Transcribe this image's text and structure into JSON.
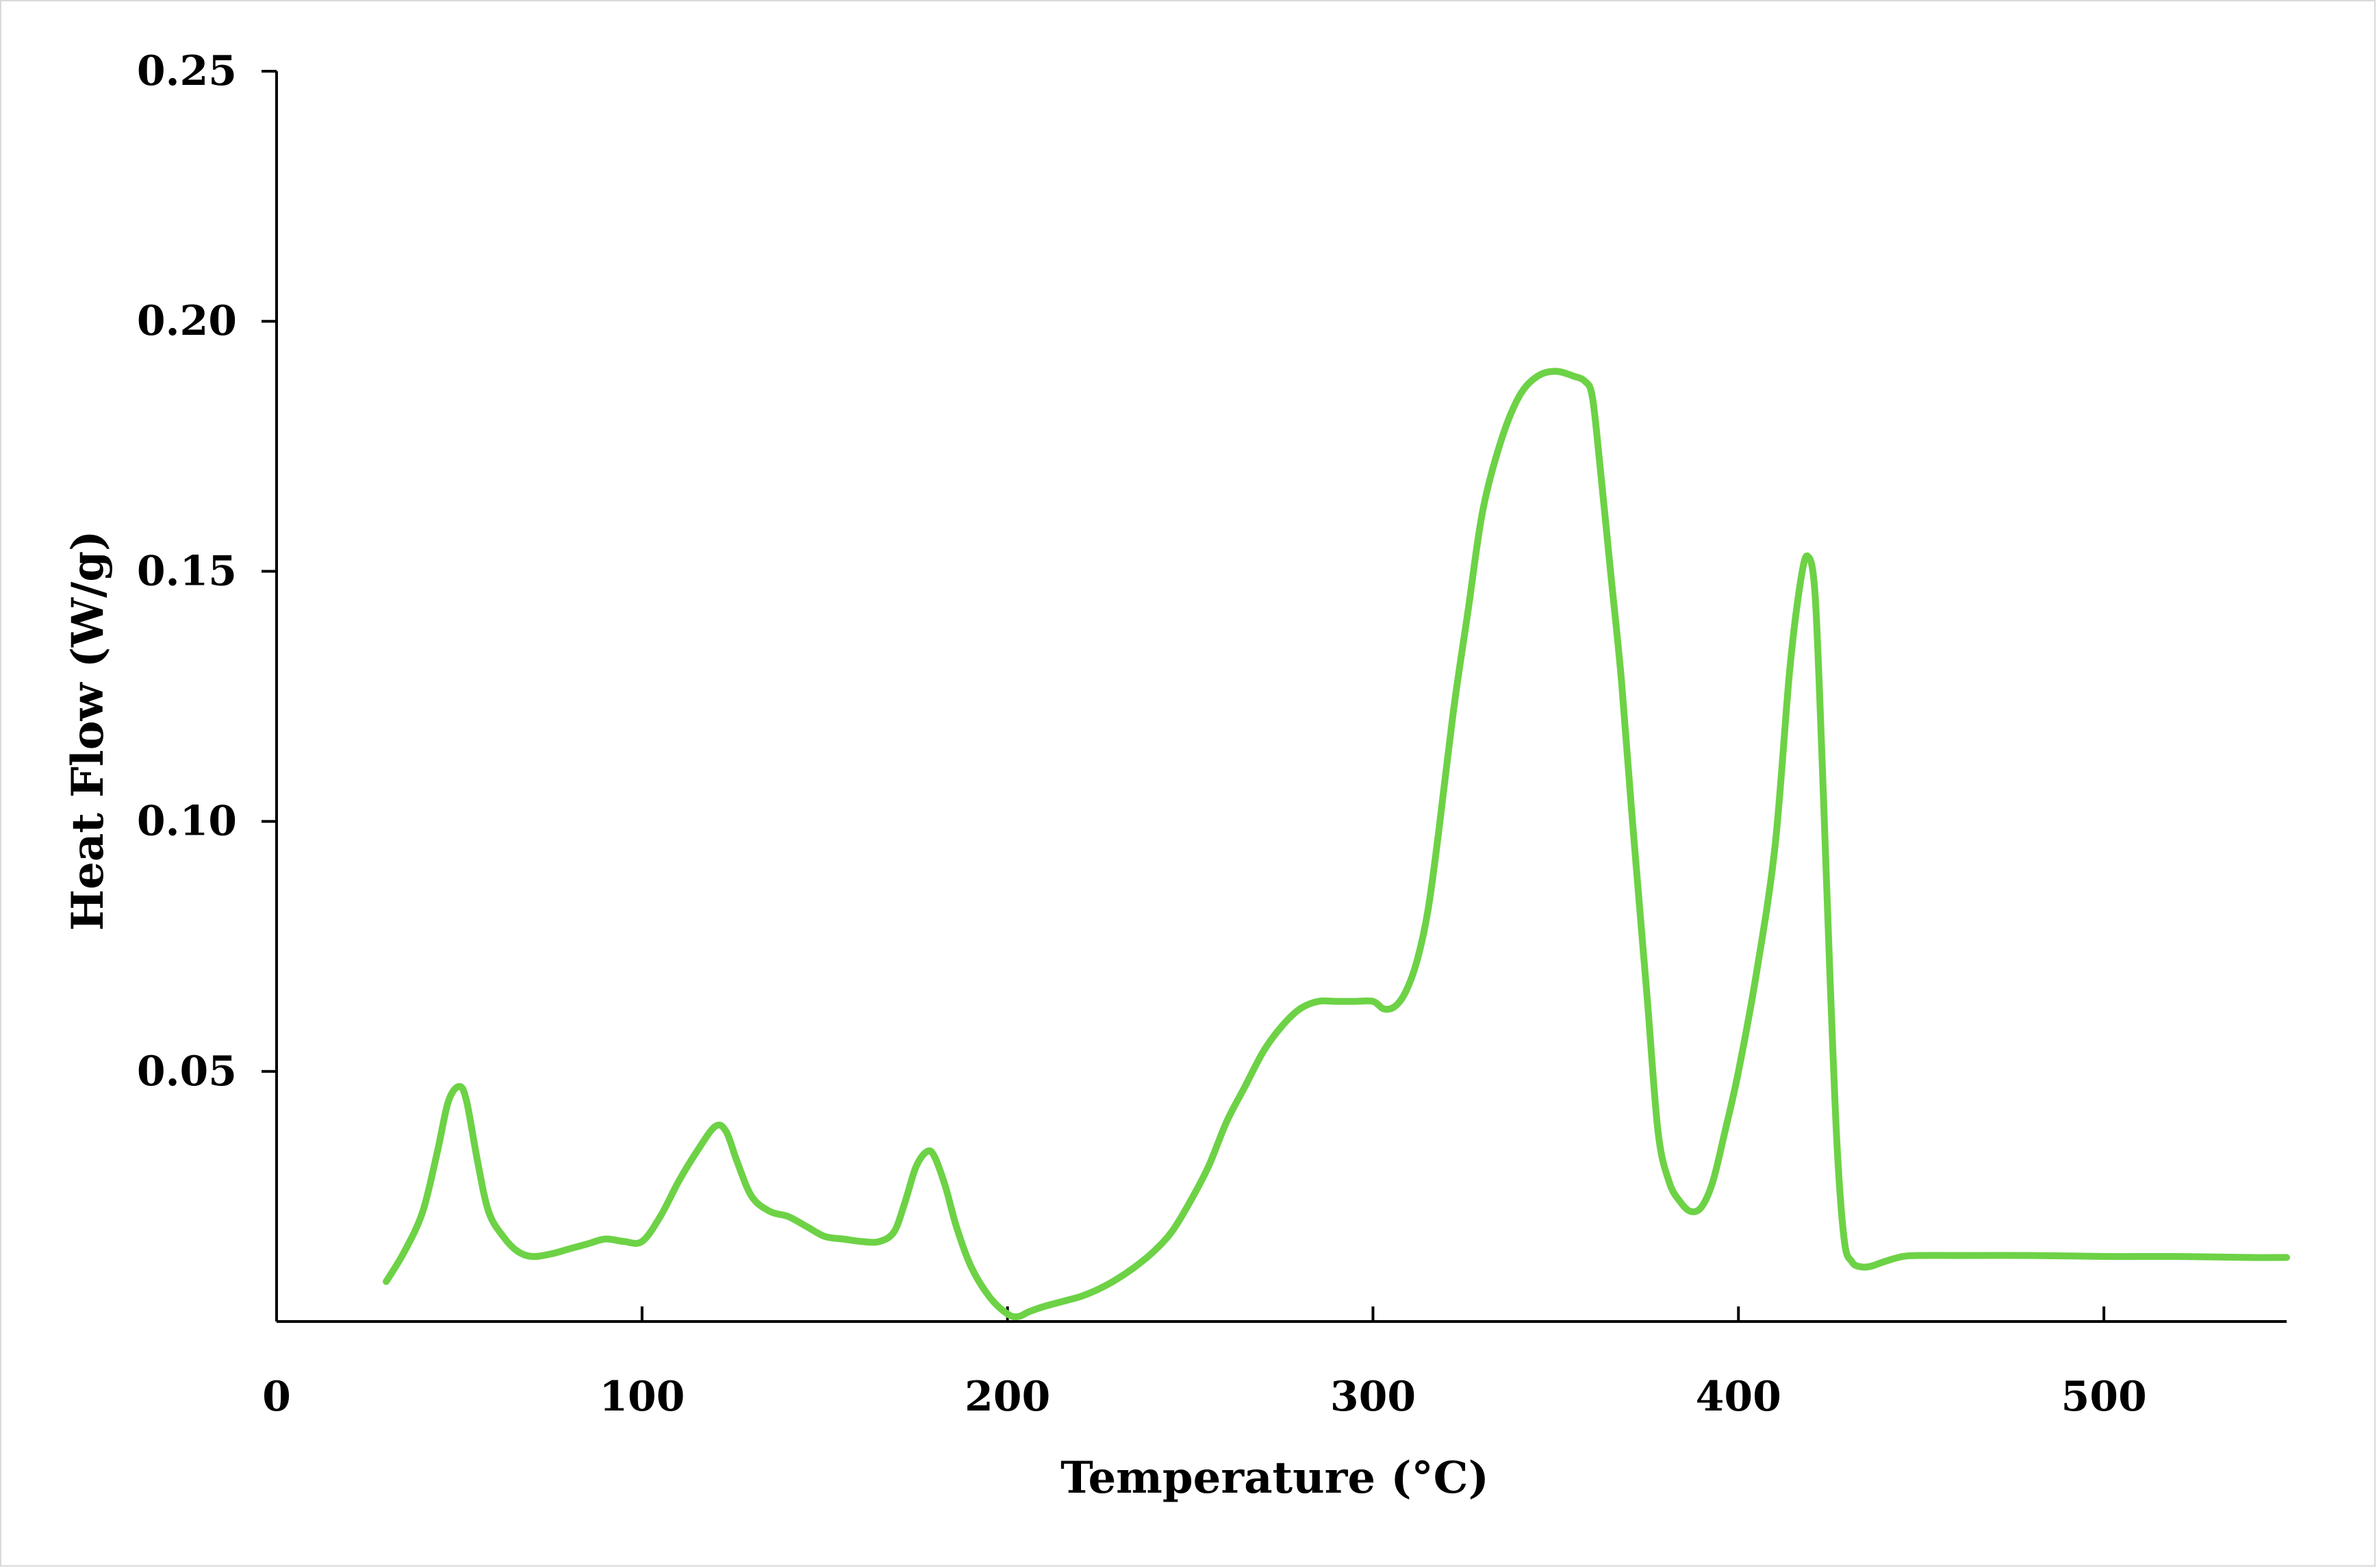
{
  "chart_data": {
    "type": "line",
    "title": "",
    "xlabel": "Temperature (°C)",
    "ylabel": "Heat Flow (W/g)",
    "xlim": [
      0,
      550
    ],
    "ylim": [
      0,
      0.25
    ],
    "x_ticks": [
      0,
      100,
      200,
      300,
      400,
      500
    ],
    "x_tick_labels": [
      "0",
      "100",
      "200",
      "300",
      "400",
      "500"
    ],
    "y_ticks": [
      0.05,
      0.1,
      0.15,
      0.2,
      0.25
    ],
    "y_tick_labels": [
      "0.05",
      "0.10",
      "0.15",
      "0.20",
      "0.25"
    ],
    "grid": false,
    "legend": "none",
    "colors": {
      "series": "#6dd246",
      "axis": "#000000",
      "frame": "#d9d9d9"
    },
    "series": [
      {
        "x": [
          30,
          35,
          40,
          44,
          47,
          50,
          52,
          55,
          58,
          62,
          66,
          70,
          75,
          80,
          85,
          90,
          95,
          100,
          105,
          110,
          115,
          120,
          123,
          126,
          130,
          135,
          140,
          145,
          150,
          155,
          160,
          165,
          169,
          172,
          175,
          178,
          180,
          183,
          186,
          190,
          195,
          200,
          203,
          206,
          210,
          215,
          220,
          225,
          230,
          235,
          240,
          245,
          250,
          255,
          260,
          265,
          270,
          275,
          280,
          285,
          290,
          295,
          300,
          303,
          306,
          309,
          312,
          315,
          318,
          322,
          326,
          330,
          335,
          340,
          345,
          350,
          355,
          358,
          360,
          362,
          365,
          368,
          371,
          375,
          378,
          381,
          384,
          387,
          390,
          393,
          396,
          400,
          405,
          410,
          414,
          417,
          419,
          421,
          423,
          425,
          427,
          429,
          431,
          433,
          436,
          440,
          445,
          450,
          460,
          480,
          500,
          520,
          540,
          550
        ],
        "y": [
          0.008,
          0.014,
          0.022,
          0.034,
          0.044,
          0.047,
          0.044,
          0.032,
          0.022,
          0.017,
          0.014,
          0.013,
          0.0135,
          0.0145,
          0.0155,
          0.0165,
          0.016,
          0.016,
          0.021,
          0.028,
          0.034,
          0.039,
          0.038,
          0.032,
          0.025,
          0.022,
          0.021,
          0.019,
          0.017,
          0.0165,
          0.016,
          0.016,
          0.018,
          0.024,
          0.031,
          0.034,
          0.033,
          0.027,
          0.019,
          0.011,
          0.005,
          0.0015,
          0.001,
          0.002,
          0.003,
          0.004,
          0.005,
          0.0065,
          0.0085,
          0.011,
          0.014,
          0.018,
          0.024,
          0.031,
          0.04,
          0.047,
          0.054,
          0.059,
          0.0625,
          0.064,
          0.064,
          0.064,
          0.064,
          0.0625,
          0.063,
          0.066,
          0.072,
          0.082,
          0.098,
          0.122,
          0.142,
          0.162,
          0.176,
          0.185,
          0.189,
          0.19,
          0.189,
          0.188,
          0.185,
          0.172,
          0.15,
          0.128,
          0.1,
          0.065,
          0.038,
          0.028,
          0.024,
          0.022,
          0.023,
          0.028,
          0.037,
          0.05,
          0.07,
          0.095,
          0.13,
          0.148,
          0.153,
          0.145,
          0.11,
          0.07,
          0.035,
          0.016,
          0.012,
          0.011,
          0.011,
          0.012,
          0.013,
          0.0132,
          0.0132,
          0.0132,
          0.013,
          0.013,
          0.0128,
          0.0128
        ]
      }
    ]
  }
}
